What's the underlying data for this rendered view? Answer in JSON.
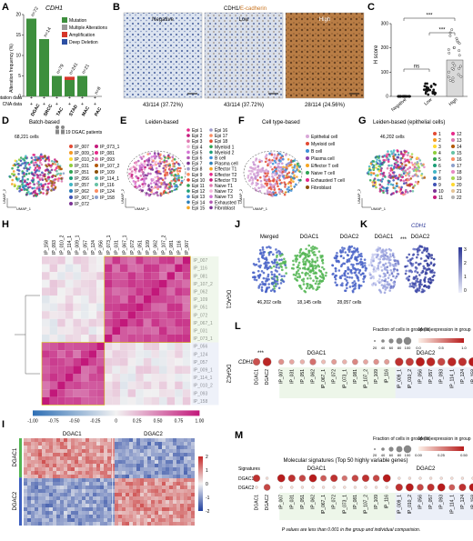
{
  "panels": {
    "A": {
      "letter": "A",
      "gene": "CDH1",
      "ylabel": "Alteration frequency (%)",
      "yticks": [
        "0",
        "5",
        "10",
        "15",
        "20"
      ],
      "ymax": 20,
      "legend": [
        {
          "label": "Mutation",
          "color": "#3d8f3d"
        },
        {
          "label": "Multiple Alterations",
          "color": "#9a9a9a"
        },
        {
          "label": "Amplification",
          "color": "#d6362a"
        },
        {
          "label": "Deep Deletion",
          "color": "#2c4fa3"
        }
      ],
      "studies": [
        {
          "name": "DGAC",
          "n": "n=72",
          "mutation": 19,
          "multiple": 0,
          "amplification": 0,
          "deletion": 0
        },
        {
          "name": "SRCC",
          "n": "n=14",
          "mutation": 14,
          "multiple": 0,
          "amplification": 0,
          "deletion": 0
        },
        {
          "name": "TAC",
          "n": "n=79",
          "mutation": 5,
          "multiple": 0,
          "amplification": 0,
          "deletion": 0
        },
        {
          "name": "STAD",
          "n": "n=241",
          "mutation": 4,
          "multiple": 0,
          "amplification": 0.8,
          "deletion": 0
        },
        {
          "name": "MAC",
          "n": "n=21",
          "mutation": 5,
          "multiple": 0,
          "amplification": 0,
          "deletion": 0
        },
        {
          "name": "PAC",
          "n": "n=8",
          "mutation": 0,
          "multiple": 0,
          "amplification": 0,
          "deletion": 0
        }
      ],
      "row_labels": [
        "Mutation data",
        "CNA data"
      ],
      "plus": "+"
    },
    "B": {
      "letter": "B",
      "title_main": "CDH1/",
      "title_accent": "E-cadherin",
      "images": [
        {
          "label": "Negative",
          "count": "43/114 (37.72%)"
        },
        {
          "label": "Low",
          "count": "43/114 (37.72%)"
        },
        {
          "label": "High",
          "count": "28/114 (24.56%)"
        }
      ]
    },
    "C": {
      "letter": "C",
      "ylabel": "H score",
      "yticks": [
        "0",
        "100",
        "200",
        "300"
      ],
      "ymax": 300,
      "groups": [
        {
          "name": "Negative",
          "mean": 0
        },
        {
          "name": "Low",
          "mean": 20
        },
        {
          "name": "High",
          "mean": 150
        }
      ],
      "sig": [
        "***",
        "***",
        "ns"
      ]
    },
    "D": {
      "letter": "D",
      "title": "Batch-based",
      "cells": "68,221 cells",
      "patients": "19 DGAC patients",
      "samples_left": [
        "IP_007",
        "IP_009_1",
        "IP_010_2",
        "IP_031",
        "IP_051",
        "IP_056",
        "IP_057",
        "IP_062",
        "IP_067_1",
        "IP_072"
      ],
      "samples_right": [
        "IP_073_1",
        "IP_081",
        "IP_093",
        "IP_107_2",
        "IP_109",
        "IP_114_1",
        "IP_116",
        "IP_124",
        "IP_158"
      ],
      "colors": [
        "#e34a33",
        "#f59a23",
        "#ffd92f",
        "#8fce3b",
        "#31a354",
        "#1b9e77",
        "#41b6c4",
        "#2c7fb8",
        "#3f51b5",
        "#7b3294",
        "#c51b7d",
        "#e7298a",
        "#de77ae",
        "#b35806",
        "#8c510a",
        "#5ab4ac",
        "#66c2a5",
        "#fc8d62",
        "#8da0cb"
      ],
      "xlabel": "UMAP_1",
      "ylabel": "UMAP_2"
    },
    "E": {
      "letter": "E",
      "title": "Leiden-based",
      "labels_left": [
        "Epi 1",
        "Epi 2",
        "Epi 3",
        "Epi 4",
        "Epi 5",
        "Epi 6",
        "Epi 7",
        "Epi 8",
        "Epi 9",
        "Epi 10",
        "Epi 11",
        "Epi 12",
        "Epi 13",
        "Epi 14",
        "Epi 15"
      ],
      "labels_right": [
        "Epi 16",
        "Epi 17",
        "Epi 18",
        "Myeloid 1",
        "Myeloid 2",
        "B cell",
        "Plasma cell",
        "Effector T1",
        "Effector T2",
        "Effector T3",
        "Naive T1",
        "Naive T2",
        "Naive T3",
        "Exhausted T",
        "Fibroblast"
      ],
      "xlabel": "UMAP_1",
      "ylabel": "UMAP_2"
    },
    "F": {
      "letter": "F",
      "title": "Cell type-based",
      "labels": [
        "Epithelial cell",
        "Myeloid cell",
        "B cell",
        "Plasma cell",
        "Effector T cell",
        "Naive T cell",
        "Exhausted T cell",
        "Fibroblast"
      ],
      "colors": [
        "#d9a8d8",
        "#e34a33",
        "#3d8fd8",
        "#8e44ad",
        "#f5a623",
        "#31a354",
        "#e7298a",
        "#8c510a"
      ],
      "xlabel": "UMAP_1",
      "ylabel": "UMAP_2"
    },
    "G": {
      "letter": "G",
      "title": "Leiden-based (epithelial cells)",
      "cells": "46,202 cells",
      "labels_left": [
        "1",
        "2",
        "3",
        "4",
        "5",
        "6",
        "7",
        "8",
        "9",
        "10",
        "11"
      ],
      "labels_right": [
        "12",
        "13",
        "14",
        "15",
        "16",
        "17",
        "18",
        "19",
        "20",
        "21",
        "22"
      ],
      "xlabel": "UMAP_1",
      "ylabel": "UMAP_2"
    },
    "H": {
      "letter": "H",
      "cols": [
        "IP_158",
        "IP_093",
        "IP_010_2",
        "IP_114_1",
        "IP_009_1",
        "IP_057",
        "IP_124",
        "IP_056",
        "IP_073_1",
        "IP_031",
        "IP_067_1",
        "IP_072",
        "IP_051",
        "IP_109",
        "IP_062",
        "IP_107_2",
        "IP_081",
        "IP_116",
        "IP_007"
      ],
      "rows": [
        "IP_007",
        "IP_116",
        "IP_081",
        "IP_107_2",
        "IP_062",
        "IP_109",
        "IP_051",
        "IP_072",
        "IP_067_1",
        "IP_031",
        "IP_073_1",
        "IP_056",
        "IP_124",
        "IP_057",
        "IP_009_1",
        "IP_114_1",
        "IP_010_2",
        "IP_093",
        "IP_158"
      ],
      "group1": "DGAC1",
      "group2": "DGAC2",
      "scale": [
        "-1.00",
        "-0.75",
        "-0.50",
        "-0.25",
        "0",
        "0.25",
        "0.50",
        "0.75",
        "1.00"
      ]
    },
    "I": {
      "letter": "I",
      "col1": "DGAC1",
      "col2": "DGAC2",
      "row1": "DGAC1",
      "row2": "DGAC2",
      "scale": [
        "2",
        "1",
        "0",
        "-1",
        "-2"
      ]
    },
    "J": {
      "letter": "J",
      "maps": [
        {
          "title": "Merged",
          "cells": "46,202 cells",
          "color": "#4a64c8"
        },
        {
          "title": "DGAC1",
          "cells": "18,145 cells",
          "color": "#52b552"
        },
        {
          "title": "DGAC2",
          "cells": "28,057 cells",
          "color": "#4a64c8"
        }
      ]
    },
    "K": {
      "letter": "K",
      "gene": "CDH1",
      "sig": "***",
      "maps": [
        "DGAC1",
        "DGAC2"
      ],
      "scale": [
        "3",
        "2",
        "1",
        "0"
      ]
    },
    "L": {
      "letter": "L",
      "gene": "CDH1",
      "sig": "***",
      "legend_size_title": "Fraction of cells in group (%)",
      "legend_color_title": "Mean expression in group",
      "size_ticks": [
        "20",
        "40",
        "60",
        "80",
        "100"
      ],
      "color_ticks": [
        "0.0",
        "0.5",
        "1.0"
      ],
      "group1": "DGAC1",
      "group2": "DGAC2",
      "cols_left": [
        "DGAC1",
        "DGAC2"
      ],
      "cols_g1": [
        "IP_007",
        "IP_031",
        "IP_051",
        "IP_062",
        "IP_067_1",
        "IP_072",
        "IP_073_1",
        "IP_081",
        "IP_107_2",
        "IP_109",
        "IP_116"
      ],
      "cols_g2": [
        "IP_009_1",
        "IP_010_2",
        "IP_056",
        "IP_057",
        "IP_093",
        "IP_114_1",
        "IP_124",
        "IP_158"
      ],
      "expr_left": [
        0.75,
        0.95
      ],
      "expr_g1": [
        0.45,
        0.35,
        0.3,
        0.6,
        0.25,
        0.4,
        0.3,
        0.5,
        0.35,
        0.45,
        0.4
      ],
      "expr_g2": [
        0.9,
        0.85,
        1.0,
        0.95,
        0.8,
        0.95,
        0.9,
        1.0
      ]
    },
    "M": {
      "letter": "M",
      "title": "Molecular signatures (Top 50 highly variable genes)",
      "legend_size_title": "Fraction of cells in group (%)",
      "legend_color_title": "Mean expression in group",
      "size_ticks": [
        "20",
        "40",
        "60",
        "80",
        "100"
      ],
      "color_ticks": [
        "0.00",
        "0.25",
        "0.50"
      ],
      "signatures_label": "Signatures",
      "rows": [
        "DGAC1",
        "DGAC2"
      ],
      "group1": "DGAC1",
      "group2": "DGAC2",
      "cols_left": [
        "DGAC1",
        "DGAC2"
      ],
      "cols_g1": [
        "IP_007",
        "IP_031",
        "IP_051",
        "IP_062",
        "IP_067_1",
        "IP_072",
        "IP_073_1",
        "IP_081",
        "IP_107_2",
        "IP_109",
        "IP_116"
      ],
      "cols_g2": [
        "IP_009_1",
        "IP_010_2",
        "IP_056",
        "IP_057",
        "IP_093",
        "IP_114_1",
        "IP_124",
        "IP_158"
      ],
      "expr_row1_left": [
        0.45,
        0.05
      ],
      "expr_row2_left": [
        0.05,
        0.4
      ],
      "expr_row1_g1": [
        0.5,
        0.45,
        0.4,
        0.5,
        0.35,
        0.45,
        0.3,
        0.4,
        0.45,
        0.4,
        0.5
      ],
      "expr_row2_g1": [
        0.05,
        0.05,
        0.05,
        0.05,
        0.05,
        0.05,
        0.05,
        0.05,
        0.05,
        0.05,
        0.05
      ],
      "expr_row1_g2": [
        0.05,
        0.05,
        0.05,
        0.05,
        0.05,
        0.05,
        0.05,
        0.05
      ],
      "expr_row2_g2": [
        0.45,
        0.5,
        0.4,
        0.45,
        0.5,
        0.35,
        0.45,
        0.5
      ],
      "footnote": "P values are less than 0.001 in the group and individual comparision."
    }
  }
}
